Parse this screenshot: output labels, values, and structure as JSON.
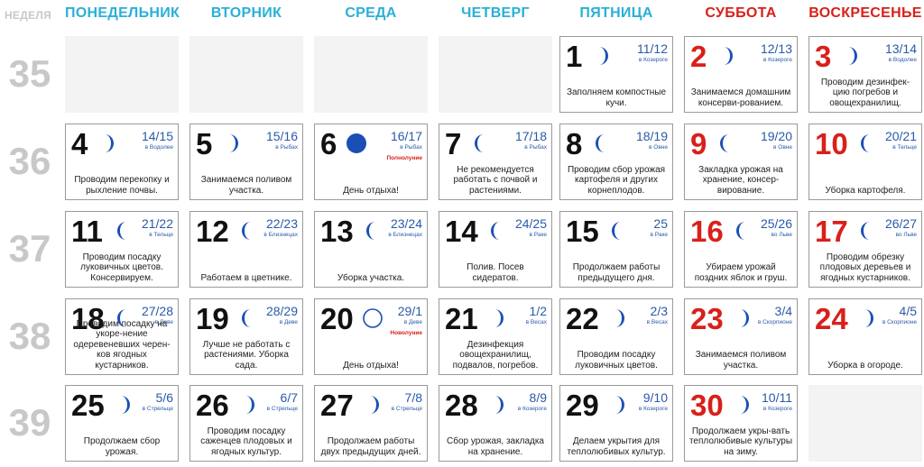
{
  "header": {
    "week": "НЕДЕЛЯ",
    "days": [
      "ПОНЕДЕЛЬНИК",
      "ВТОРНИК",
      "СРЕДА",
      "ЧЕТВЕРГ",
      "ПЯТНИЦА",
      "СУББОТА",
      "ВОСКРЕСЕНЬЕ"
    ]
  },
  "colors": {
    "accent": "#2ab0d6",
    "weekend": "#d9201a",
    "moon": "#1a4fb5",
    "week_num": "#c8c8c8"
  },
  "weeks": [
    {
      "num": "35",
      "days": [
        null,
        null,
        null,
        null,
        {
          "day": "1",
          "lunar": "11/12",
          "sign": "в Козероге",
          "moon": "waxing",
          "note": "Заполняем компостные кучи."
        },
        {
          "day": "2",
          "lunar": "12/13",
          "sign": "в Козероге",
          "moon": "waxing",
          "note": "Занимаемся домашним консерви-рованием."
        },
        {
          "day": "3",
          "lunar": "13/14",
          "sign": "в Водолее",
          "moon": "waxing",
          "note": "Проводим дезинфек-цию погребов и овощехранилищ."
        }
      ]
    },
    {
      "num": "36",
      "days": [
        {
          "day": "4",
          "lunar": "14/15",
          "sign": "в Водолее",
          "moon": "waxing",
          "note": "Проводим перекопку и рыхление почвы."
        },
        {
          "day": "5",
          "lunar": "15/16",
          "sign": "в Рыбах",
          "moon": "waxing",
          "note": "Занимаемся поливом участка."
        },
        {
          "day": "6",
          "lunar": "16/17",
          "sign": "в Рыбах",
          "moon": "full",
          "phase": "Полнолуние",
          "note": "День отдыха!"
        },
        {
          "day": "7",
          "lunar": "17/18",
          "sign": "в Рыбах",
          "moon": "waning",
          "note": "Не рекомендуется работать с почвой и растениями."
        },
        {
          "day": "8",
          "lunar": "18/19",
          "sign": "в Овне",
          "moon": "waning",
          "note": "Проводим сбор урожая картофеля и других корнеплодов."
        },
        {
          "day": "9",
          "lunar": "19/20",
          "sign": "в Овне",
          "moon": "waning",
          "note": "Закладка урожая на хранение, консер-вирование."
        },
        {
          "day": "10",
          "lunar": "20/21",
          "sign": "в Тельце",
          "moon": "waning",
          "note": "Уборка картофеля."
        }
      ]
    },
    {
      "num": "37",
      "days": [
        {
          "day": "11",
          "lunar": "21/22",
          "sign": "в Тельце",
          "moon": "waning",
          "note": "Проводим посадку луковичных цветов. Консервируем."
        },
        {
          "day": "12",
          "lunar": "22/23",
          "sign": "в Близнецах",
          "moon": "waning",
          "note": "Работаем в цветнике."
        },
        {
          "day": "13",
          "lunar": "23/24",
          "sign": "в Близнецах",
          "moon": "waning",
          "note": "Уборка участка."
        },
        {
          "day": "14",
          "lunar": "24/25",
          "sign": "в Раке",
          "moon": "waning",
          "note": "Полив. Посев сидератов."
        },
        {
          "day": "15",
          "lunar": "25",
          "sign": "в Раке",
          "moon": "waning",
          "note": "Продолжаем работы предыдущего дня."
        },
        {
          "day": "16",
          "lunar": "25/26",
          "sign": "во Льве",
          "moon": "waning",
          "note": "Убираем урожай поздних яблок и груш."
        },
        {
          "day": "17",
          "lunar": "26/27",
          "sign": "во Льве",
          "moon": "waning",
          "note": "Проводим обрезку плодовых деревьев и ягодных кустарников."
        }
      ]
    },
    {
      "num": "38",
      "days": [
        {
          "day": "18",
          "lunar": "27/28",
          "sign": "в Деве",
          "moon": "waning",
          "note": "Проводим посадку на укоре-нение одеревеневших черен-ков ягодных кустарников."
        },
        {
          "day": "19",
          "lunar": "28/29",
          "sign": "в Деве",
          "moon": "waning",
          "note": "Лучше не работать с растениями. Уборка сада."
        },
        {
          "day": "20",
          "lunar": "29/1",
          "sign": "в Деве",
          "moon": "new",
          "phase": "Новолуние",
          "note": "День отдыха!"
        },
        {
          "day": "21",
          "lunar": "1/2",
          "sign": "в Весах",
          "moon": "waxing",
          "note": "Дезинфекция овощехранилищ, подвалов, погребов."
        },
        {
          "day": "22",
          "lunar": "2/3",
          "sign": "в Весах",
          "moon": "waxing",
          "note": "Проводим посадку луковичных цветов."
        },
        {
          "day": "23",
          "lunar": "3/4",
          "sign": "в Скорпионе",
          "moon": "waxing",
          "note": "Занимаемся поливом участка."
        },
        {
          "day": "24",
          "lunar": "4/5",
          "sign": "в Скорпионе",
          "moon": "waxing",
          "note": "Уборка в огороде."
        }
      ]
    },
    {
      "num": "39",
      "days": [
        {
          "day": "25",
          "lunar": "5/6",
          "sign": "в Стрельце",
          "moon": "waxing",
          "note": "Продолжаем сбор урожая."
        },
        {
          "day": "26",
          "lunar": "6/7",
          "sign": "в Стрельце",
          "moon": "waxing",
          "note": "Проводим посадку саженцев плодовых и ягодных культур."
        },
        {
          "day": "27",
          "lunar": "7/8",
          "sign": "в Стрельце",
          "moon": "waxing",
          "note": "Продолжаем работы двух предыдущих дней."
        },
        {
          "day": "28",
          "lunar": "8/9",
          "sign": "в Козероге",
          "moon": "waxing",
          "note": "Сбор урожая, закладка на хранение."
        },
        {
          "day": "29",
          "lunar": "9/10",
          "sign": "в Козероге",
          "moon": "waxing",
          "note": "Делаем укрытия для теплолюбивых культур."
        },
        {
          "day": "30",
          "lunar": "10/11",
          "sign": "в Козероге",
          "moon": "waxing",
          "note": "Продолжаем укры-вать теплолюбивые культуры на зиму."
        },
        null
      ]
    }
  ]
}
